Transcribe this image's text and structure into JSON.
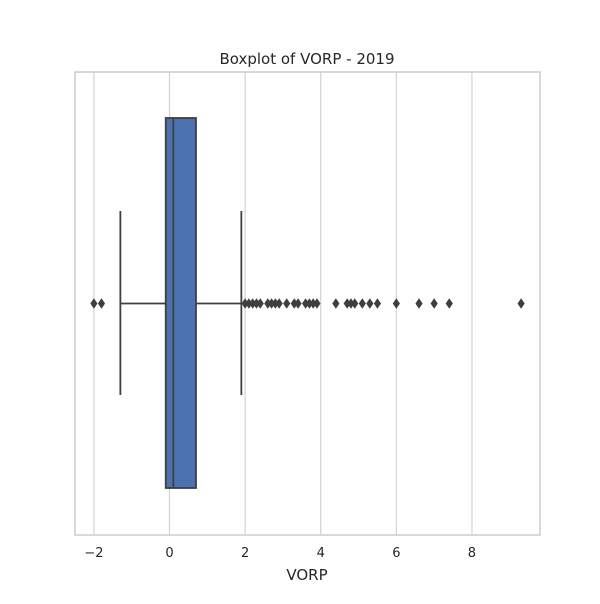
{
  "chart_data": {
    "type": "box",
    "title": "Boxplot of VORP - 2019",
    "xlabel": "VORP",
    "ylabel": "",
    "xlim": [
      -2.5,
      9.8
    ],
    "x_ticks": [
      -2,
      0,
      2,
      4,
      6,
      8
    ],
    "x_tick_labels": [
      "−2",
      "0",
      "2",
      "4",
      "6",
      "8"
    ],
    "grid": "vertical",
    "box": {
      "whisker_low": -1.3,
      "q1": -0.1,
      "median": 0.1,
      "q3": 0.7,
      "whisker_high": 1.9
    },
    "outliers": [
      -2.0,
      -1.8,
      2.0,
      2.1,
      2.2,
      2.3,
      2.4,
      2.6,
      2.7,
      2.8,
      2.9,
      3.1,
      3.3,
      3.4,
      3.6,
      3.7,
      3.8,
      3.9,
      4.4,
      4.7,
      4.8,
      4.9,
      5.1,
      5.3,
      5.5,
      6.0,
      6.6,
      7.0,
      7.4,
      9.3
    ],
    "colors": {
      "box_fill": "#4c72b0",
      "line": "#3f3f3f",
      "grid": "#d3d3d3",
      "frame": "#cccccc"
    }
  }
}
